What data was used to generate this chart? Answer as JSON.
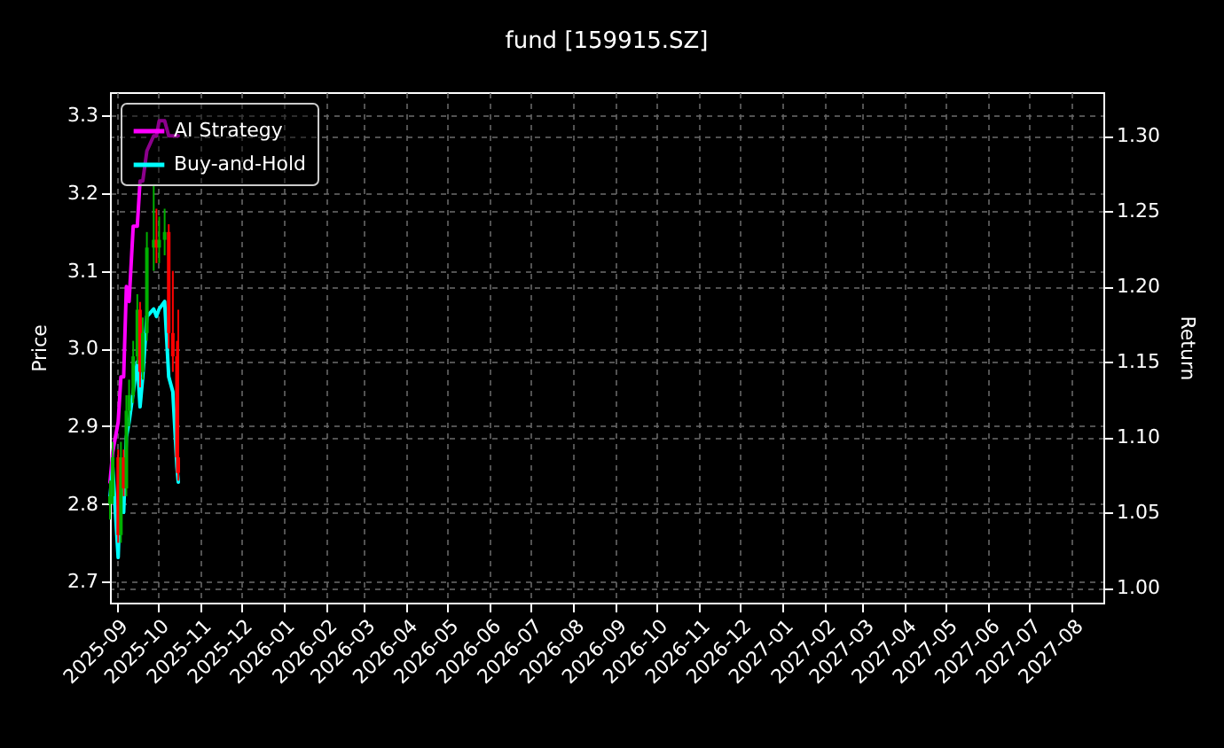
{
  "chart_data": {
    "type": "candlestick",
    "title": "fund [159915.SZ]",
    "ylabel": "Price",
    "y2label": "Return",
    "x": [
      "2025-08-27",
      "2025-08-29",
      "2025-09-02",
      "2025-09-04",
      "2025-09-06",
      "2025-09-08",
      "2025-09-10",
      "2025-09-13",
      "2025-09-16",
      "2025-09-18",
      "2025-09-20",
      "2025-09-23",
      "2025-09-28",
      "2025-09-30",
      "2025-10-02",
      "2025-10-06",
      "2025-10-09",
      "2025-10-12",
      "2025-10-15",
      "2025-10-16"
    ],
    "ohlc": [
      [
        2.8,
        2.83,
        2.78,
        2.81
      ],
      [
        2.81,
        2.88,
        2.8,
        2.86
      ],
      [
        2.86,
        2.87,
        2.75,
        2.76
      ],
      [
        2.76,
        2.88,
        2.75,
        2.86
      ],
      [
        2.86,
        2.87,
        2.81,
        2.82
      ],
      [
        2.82,
        2.94,
        2.81,
        2.92
      ],
      [
        2.92,
        2.96,
        2.9,
        2.94
      ],
      [
        2.94,
        3.01,
        2.93,
        2.99
      ],
      [
        2.99,
        3.07,
        2.98,
        3.05
      ],
      [
        3.05,
        3.06,
        2.95,
        2.97
      ],
      [
        2.97,
        3.04,
        2.96,
        3.02
      ],
      [
        3.02,
        3.15,
        3.01,
        3.13
      ],
      [
        3.13,
        3.21,
        3.1,
        3.14
      ],
      [
        3.14,
        3.18,
        3.11,
        3.13
      ],
      [
        3.13,
        3.17,
        3.11,
        3.14
      ],
      [
        3.14,
        3.18,
        3.12,
        3.15
      ],
      [
        3.15,
        3.16,
        3.0,
        3.02
      ],
      [
        3.02,
        3.1,
        2.97,
        2.99
      ],
      [
        2.99,
        3.01,
        2.84,
        2.86
      ],
      [
        2.86,
        3.05,
        2.83,
        2.84
      ]
    ],
    "colors": [
      "#00b000",
      "#00b000",
      "#ff0000",
      "#00b000",
      "#ff0000",
      "#00b000",
      "#00b000",
      "#00b000",
      "#00b000",
      "#ff0000",
      "#00b000",
      "#00b000",
      "#00b000",
      "#ff0000",
      "#00b000",
      "#00b000",
      "#ff0000",
      "#ff0000",
      "#ff0000",
      "#ff0000"
    ],
    "series": [
      {
        "name": "AI Strategy",
        "type": "line",
        "axis": "y2",
        "color": "#ff00ff",
        "values": [
          1.07,
          1.09,
          1.11,
          1.14,
          1.14,
          1.2,
          1.19,
          1.24,
          1.24,
          1.27,
          1.27,
          1.29,
          1.3,
          1.3,
          1.31,
          1.31,
          1.3,
          1.3,
          1.3,
          1.3
        ]
      },
      {
        "name": "Buy-and-Hold",
        "type": "line",
        "axis": "y2",
        "color": "#00ffff",
        "values": [
          1.06,
          1.08,
          1.02,
          1.08,
          1.05,
          1.1,
          1.11,
          1.13,
          1.15,
          1.12,
          1.14,
          1.18,
          1.185,
          1.18,
          1.185,
          1.19,
          1.14,
          1.13,
          1.08,
          1.07
        ]
      }
    ],
    "xlim": [
      "2025-08-27",
      "2027-08-24"
    ],
    "xticks": [
      "2025-09",
      "2025-10",
      "2025-11",
      "2025-12",
      "2026-01",
      "2026-02",
      "2026-03",
      "2026-04",
      "2026-05",
      "2026-06",
      "2026-07",
      "2026-08",
      "2026-09",
      "2026-10",
      "2026-11",
      "2026-12",
      "2027-01",
      "2027-02",
      "2027-03",
      "2027-04",
      "2027-05",
      "2027-06",
      "2027-07",
      "2027-08"
    ],
    "ylim": [
      2.673,
      3.33
    ],
    "yticks": [
      2.7,
      2.8,
      2.9,
      {
        "value": 3,
        "label": "3.0"
      },
      3.1,
      3.2,
      3.3
    ],
    "y2lim": [
      0.99,
      1.329
    ],
    "y2ticks": [
      {
        "value": 1,
        "label": "1.00"
      },
      {
        "value": 1.05,
        "label": "1.05"
      },
      {
        "value": 1.1,
        "label": "1.10"
      },
      {
        "value": 1.15,
        "label": "1.15"
      },
      {
        "value": 1.2,
        "label": "1.20"
      },
      {
        "value": 1.25,
        "label": "1.25"
      },
      {
        "value": 1.3,
        "label": "1.30"
      }
    ],
    "grid": true,
    "legend": "top left",
    "marker": "none",
    "line_style": "solid"
  }
}
